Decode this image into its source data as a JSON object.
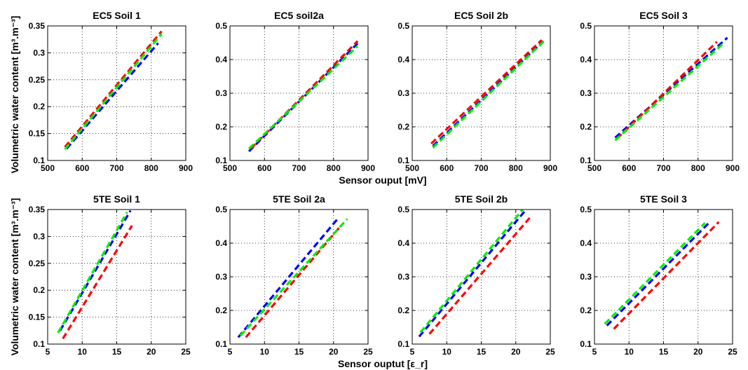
{
  "figure": {
    "ylabel_top": "Volumetric water content [m³.m⁻³]",
    "ylabel_bottom": "Volumetric water content [m³.m⁻³]",
    "xlabel_top": "Sensor ouput [mV]",
    "xlabel_bottom": "Sensor ouptut [ε_r]"
  },
  "colors": {
    "blue": "#0000ff",
    "red": "#ff0000",
    "green": "#00ee00"
  },
  "chart_data": [
    {
      "type": "line",
      "title": "EC5 Soil 1",
      "grid": true,
      "xlim": [
        500,
        900
      ],
      "ylim": [
        0.1,
        0.35
      ],
      "xticks": [
        500,
        600,
        700,
        800,
        900
      ],
      "yticks": [
        0.1,
        0.15,
        0.2,
        0.25,
        0.3,
        0.35
      ],
      "series": [
        {
          "color": "#0000ff",
          "style": "dashed",
          "x": [
            555,
            820
          ],
          "y": [
            0.122,
            0.318
          ]
        },
        {
          "color": "#ff0000",
          "style": "dashed",
          "x": [
            550,
            830
          ],
          "y": [
            0.125,
            0.34
          ]
        },
        {
          "color": "#00ee00",
          "style": "dashed",
          "x": [
            550,
            830
          ],
          "y": [
            0.121,
            0.335
          ]
        }
      ]
    },
    {
      "type": "line",
      "title": "EC5 soil2a",
      "grid": true,
      "xlim": [
        500,
        900
      ],
      "ylim": [
        0.1,
        0.5
      ],
      "xticks": [
        500,
        600,
        700,
        800,
        900
      ],
      "yticks": [
        0.1,
        0.2,
        0.3,
        0.4,
        0.5
      ],
      "series": [
        {
          "color": "#0000ff",
          "style": "dashed",
          "x": [
            555,
            870
          ],
          "y": [
            0.127,
            0.448
          ]
        },
        {
          "color": "#ff0000",
          "style": "dashed",
          "x": [
            560,
            870
          ],
          "y": [
            0.135,
            0.455
          ]
        },
        {
          "color": "#00ee00",
          "style": "dashed",
          "x": [
            555,
            870
          ],
          "y": [
            0.135,
            0.44
          ]
        }
      ]
    },
    {
      "type": "line",
      "title": "EC5 Soil 2b",
      "grid": true,
      "xlim": [
        500,
        900
      ],
      "ylim": [
        0.1,
        0.5
      ],
      "xticks": [
        500,
        600,
        700,
        800,
        900
      ],
      "yticks": [
        0.1,
        0.2,
        0.3,
        0.4,
        0.5
      ],
      "series": [
        {
          "color": "#0000ff",
          "style": "dashed",
          "x": [
            560,
            880
          ],
          "y": [
            0.143,
            0.455
          ]
        },
        {
          "color": "#ff0000",
          "style": "dashed",
          "x": [
            555,
            875
          ],
          "y": [
            0.15,
            0.458
          ]
        },
        {
          "color": "#00ee00",
          "style": "dashed",
          "x": [
            560,
            885
          ],
          "y": [
            0.138,
            0.458
          ]
        }
      ]
    },
    {
      "type": "line",
      "title": "EC5 Soil 3",
      "grid": true,
      "xlim": [
        500,
        900
      ],
      "ylim": [
        0.1,
        0.5
      ],
      "xticks": [
        500,
        600,
        700,
        800,
        900
      ],
      "yticks": [
        0.1,
        0.2,
        0.3,
        0.4,
        0.5
      ],
      "series": [
        {
          "color": "#0000ff",
          "style": "dashed",
          "x": [
            560,
            885
          ],
          "y": [
            0.168,
            0.465
          ]
        },
        {
          "color": "#ff0000",
          "style": "dashed",
          "x": [
            565,
            855
          ],
          "y": [
            0.165,
            0.453
          ]
        },
        {
          "color": "#00ee00",
          "style": "dashed",
          "x": [
            560,
            870
          ],
          "y": [
            0.16,
            0.445
          ]
        }
      ]
    },
    {
      "type": "line",
      "title": "5TE Soil 1",
      "grid": true,
      "xlim": [
        5,
        25
      ],
      "ylim": [
        0.1,
        0.35
      ],
      "xticks": [
        5,
        10,
        15,
        20,
        25
      ],
      "yticks": [
        0.1,
        0.15,
        0.2,
        0.25,
        0.3,
        0.35
      ],
      "series": [
        {
          "color": "#0000ff",
          "style": "dashed",
          "x": [
            6.8,
            17.0
          ],
          "y": [
            0.125,
            0.348
          ]
        },
        {
          "color": "#ff0000",
          "style": "dashed",
          "x": [
            7.2,
            17.2
          ],
          "y": [
            0.11,
            0.32
          ]
        },
        {
          "color": "#00ee00",
          "style": "dashed",
          "x": [
            6.5,
            16.5
          ],
          "y": [
            0.121,
            0.345
          ]
        }
      ]
    },
    {
      "type": "line",
      "title": "5TE Soil 2a",
      "grid": true,
      "xlim": [
        5,
        25
      ],
      "ylim": [
        0.1,
        0.5
      ],
      "xticks": [
        5,
        10,
        15,
        20,
        25
      ],
      "yticks": [
        0.1,
        0.2,
        0.3,
        0.4,
        0.5
      ],
      "series": [
        {
          "color": "#0000ff",
          "style": "dashed",
          "x": [
            6.2,
            20.5
          ],
          "y": [
            0.12,
            0.47
          ]
        },
        {
          "color": "#ff0000",
          "style": "dashed",
          "x": [
            7.3,
            21.0
          ],
          "y": [
            0.12,
            0.45
          ]
        },
        {
          "color": "#00ee00",
          "style": "dashed",
          "x": [
            6.5,
            22.0
          ],
          "y": [
            0.125,
            0.472
          ]
        }
      ]
    },
    {
      "type": "line",
      "title": "5TE Soil 2b",
      "grid": true,
      "xlim": [
        5,
        25
      ],
      "ylim": [
        0.1,
        0.5
      ],
      "xticks": [
        5,
        10,
        15,
        20,
        25
      ],
      "yticks": [
        0.1,
        0.2,
        0.3,
        0.4,
        0.5
      ],
      "series": [
        {
          "color": "#0000ff",
          "style": "dashed",
          "x": [
            6.0,
            21.5
          ],
          "y": [
            0.122,
            0.5
          ]
        },
        {
          "color": "#ff0000",
          "style": "dashed",
          "x": [
            7.5,
            22.0
          ],
          "y": [
            0.13,
            0.475
          ]
        },
        {
          "color": "#00ee00",
          "style": "dashed",
          "x": [
            6.2,
            21.0
          ],
          "y": [
            0.135,
            0.5
          ]
        }
      ]
    },
    {
      "type": "line",
      "title": "5TE Soil 3",
      "grid": true,
      "xlim": [
        5,
        25
      ],
      "ylim": [
        0.1,
        0.5
      ],
      "xticks": [
        5,
        10,
        15,
        20,
        25
      ],
      "yticks": [
        0.1,
        0.2,
        0.3,
        0.4,
        0.5
      ],
      "series": [
        {
          "color": "#0000ff",
          "style": "dashed",
          "x": [
            6.8,
            21.8
          ],
          "y": [
            0.155,
            0.465
          ]
        },
        {
          "color": "#ff0000",
          "style": "dashed",
          "x": [
            7.8,
            23.0
          ],
          "y": [
            0.145,
            0.463
          ]
        },
        {
          "color": "#00ee00",
          "style": "dashed",
          "x": [
            6.5,
            21.0
          ],
          "y": [
            0.16,
            0.46
          ]
        }
      ]
    }
  ]
}
